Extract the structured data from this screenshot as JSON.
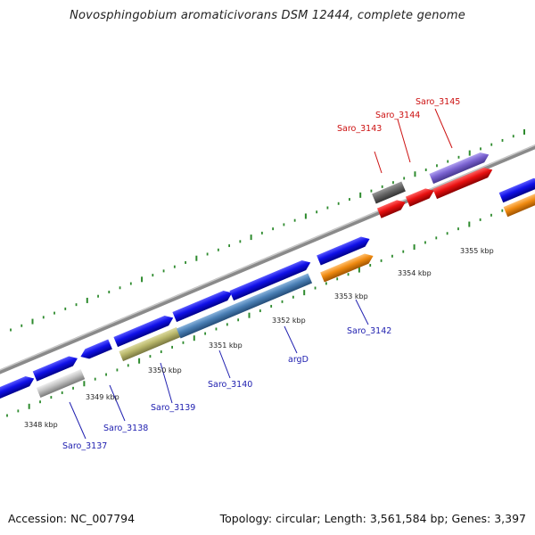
{
  "title": "Novosphingobium aromaticivorans DSM 12444, complete genome",
  "footer": {
    "accession": "Accession: NC_007794",
    "summary": "Topology: circular; Length: 3,561,584 bp; Genes: 3,397"
  },
  "scale_labels": [
    "3348 kbp",
    "3349 kbp",
    "3350 kbp",
    "3351 kbp",
    "3352 kbp",
    "3353 kbp",
    "3354 kbp",
    "3355 kbp"
  ],
  "gene_labels": {
    "saro_3137": "Saro_3137",
    "saro_3138": "Saro_3138",
    "saro_3139": "Saro_3139",
    "saro_3140": "Saro_3140",
    "argd": "argD",
    "saro_3142": "Saro_3142",
    "saro_3143": "Saro_3143",
    "saro_3144": "Saro_3144",
    "saro_3145": "Saro_3145"
  },
  "colors": {
    "blue": "#1010e8",
    "steelblue": "#4a7fb5",
    "khaki": "#b8b66a",
    "gray": "#b8b8b8",
    "darkgray": "#666666",
    "orange": "#f08a10",
    "red": "#e81010",
    "purple": "#7a62d0",
    "tick": "#2e8b2e",
    "backbone": "#8a8a8a",
    "label_blue": "#2020b0",
    "label_red": "#cc1010"
  }
}
